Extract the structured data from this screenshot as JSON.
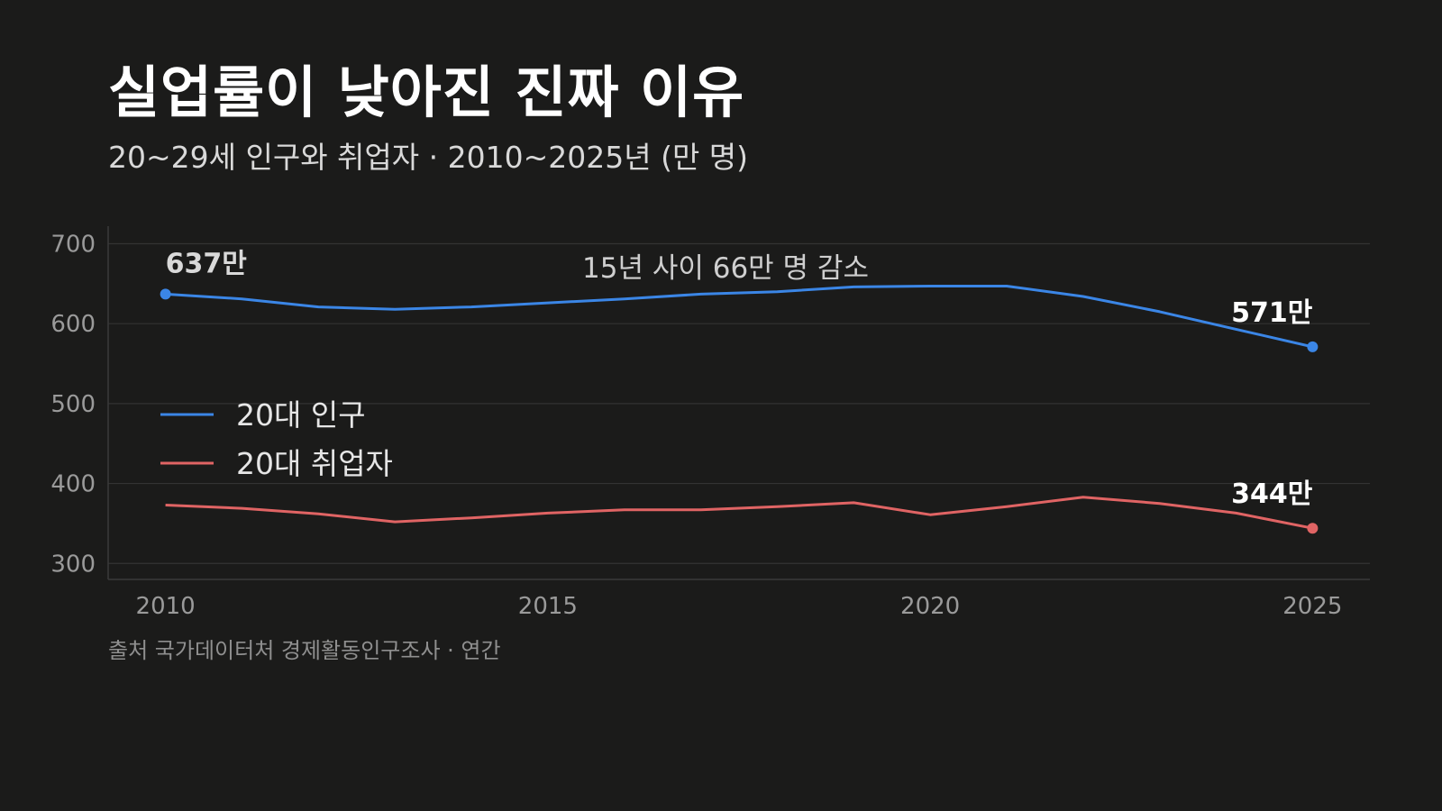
{
  "chart_data": {
    "type": "line",
    "title": "실업률이 낮아진 진짜 이유",
    "subtitle": "20~29세 인구와 취업자 · 2010~2025년 (만 명)",
    "source": "출처 국가데이터처 경제활동인구조사 · 연간",
    "x": [
      2010,
      2011,
      2012,
      2013,
      2014,
      2015,
      2016,
      2017,
      2018,
      2019,
      2020,
      2021,
      2022,
      2023,
      2024,
      2025
    ],
    "xticks": [
      "2010",
      "2015",
      "2020",
      "2025"
    ],
    "yticks": [
      "700",
      "600",
      "500",
      "400",
      "300"
    ],
    "xlim": [
      2009.25,
      2025.75
    ],
    "ylim": [
      280,
      722
    ],
    "grid": true,
    "legend_position": "center-left",
    "annotation": "15년 사이 66만 명 감소",
    "series": [
      {
        "name": "20대 인구",
        "color": "#3b86e6",
        "values": [
          637,
          631,
          621,
          618,
          621,
          626,
          631,
          637,
          640,
          646,
          647,
          647,
          634,
          615,
          593,
          571
        ],
        "start_label": "637만",
        "end_label": "571만"
      },
      {
        "name": "20대 취업자",
        "color": "#e06464",
        "values": [
          373,
          369,
          362,
          352,
          357,
          363,
          367,
          367,
          371,
          376,
          361,
          371,
          383,
          375,
          363,
          344
        ],
        "end_label": "344만"
      }
    ]
  }
}
